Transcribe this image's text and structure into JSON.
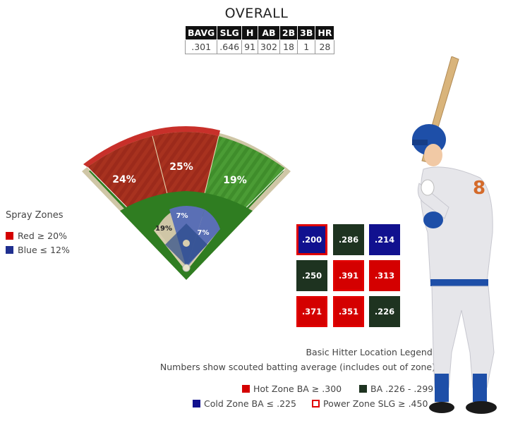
{
  "title": "OVERALL",
  "stats": {
    "headers": [
      "BAVG",
      "SLG",
      "H",
      "AB",
      "2B",
      "3B",
      "HR"
    ],
    "values": [
      ".301",
      ".646",
      "91",
      "302",
      "18",
      "1",
      "28"
    ]
  },
  "spray": {
    "label": "Spray Zones",
    "legend": [
      {
        "label": "Red  ≥ 20%",
        "color": "#d40000"
      },
      {
        "label": "Blue  ≤ 12%",
        "color": "#1f2f8f"
      }
    ],
    "outfield": {
      "left": "24%",
      "center": "25%",
      "right": "19%"
    },
    "infield": {
      "left": "19%",
      "center": "7%",
      "right": "7%"
    }
  },
  "zones": {
    "cells": [
      ".200",
      ".286",
      ".214",
      ".250",
      ".391",
      ".313",
      ".371",
      ".351",
      ".226"
    ]
  },
  "hitter_legend": {
    "title": "Basic Hitter Location Legend:",
    "subtitle": "Numbers show scouted batting average (includes out of zone)",
    "hot": "Hot Zone BA ≥ .300",
    "mid": "BA .226 - .299",
    "cold": "Cold Zone BA ≤ .225",
    "power": "Power Zone SLG ≥ .450"
  },
  "colors": {
    "hot": "#d40000",
    "mid": "#1e3320",
    "cold": "#11118f",
    "power": "#e00000"
  }
}
